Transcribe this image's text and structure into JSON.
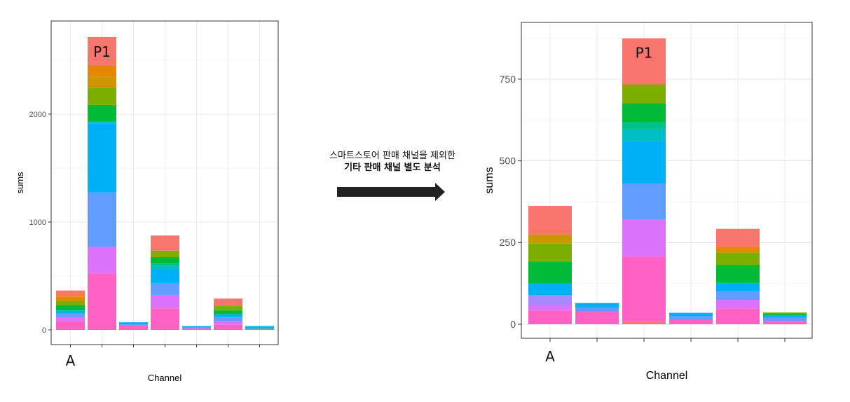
{
  "annotation": {
    "line1": "스마트스토어 판매 채널을 제외한",
    "line2": "기타 판매 채널 별도 분석"
  },
  "colors": {
    "arrow": "#222222",
    "palette": [
      "#F8766D",
      "#E58700",
      "#C99800",
      "#A3A500",
      "#6BB100",
      "#00BA38",
      "#00BF7D",
      "#00C0AF",
      "#00BCD8",
      "#00B0F6",
      "#619CFF",
      "#B983FF",
      "#E76BF3",
      "#FD61D1",
      "#FF67A4"
    ]
  },
  "chart_data": [
    {
      "type": "bar",
      "stacked": true,
      "xlabel": "Channel",
      "ylabel": "sums",
      "ylim": [
        0,
        2850
      ],
      "yticks": [
        0,
        1000,
        2000
      ],
      "grid": true,
      "bar_labels": [
        {
          "bar": 0,
          "text": "A"
        },
        {
          "bar": 1,
          "text": "P1"
        }
      ],
      "bars": [
        {
          "segments": [
            {
              "value": 80,
              "color": "#FF61C3"
            },
            {
              "value": 40,
              "color": "#DB72FB"
            },
            {
              "value": 30,
              "color": "#619CFF"
            },
            {
              "value": 30,
              "color": "#00B9E3"
            },
            {
              "value": 50,
              "color": "#00BA38"
            },
            {
              "value": 40,
              "color": "#7CAE00"
            },
            {
              "value": 40,
              "color": "#E58700"
            },
            {
              "value": 55,
              "color": "#F8766D"
            }
          ]
        },
        {
          "segments": [
            {
              "value": 525,
              "color": "#FF61C3"
            },
            {
              "value": 245,
              "color": "#DB72FB"
            },
            {
              "value": 505,
              "color": "#619CFF"
            },
            {
              "value": 635,
              "color": "#00B0F6"
            },
            {
              "value": 20,
              "color": "#00BFC4"
            },
            {
              "value": 155,
              "color": "#00BA38"
            },
            {
              "value": 160,
              "color": "#7CAE00"
            },
            {
              "value": 100,
              "color": "#C99800"
            },
            {
              "value": 110,
              "color": "#E58700"
            },
            {
              "value": 260,
              "color": "#F8766D"
            }
          ]
        },
        {
          "segments": [
            {
              "value": 40,
              "color": "#FF61C3"
            },
            {
              "value": 10,
              "color": "#619CFF"
            },
            {
              "value": 20,
              "color": "#00B0F6"
            }
          ]
        },
        {
          "segments": [
            {
              "value": 200,
              "color": "#FF61C3"
            },
            {
              "value": 125,
              "color": "#DB72FB"
            },
            {
              "value": 110,
              "color": "#619CFF"
            },
            {
              "value": 130,
              "color": "#00B0F6"
            },
            {
              "value": 30,
              "color": "#00BFC4"
            },
            {
              "value": 20,
              "color": "#00C08B"
            },
            {
              "value": 60,
              "color": "#00BA38"
            },
            {
              "value": 60,
              "color": "#7CAE00"
            },
            {
              "value": 140,
              "color": "#F8766D"
            }
          ]
        },
        {
          "segments": [
            {
              "value": 15,
              "color": "#FF61C3"
            },
            {
              "value": 8,
              "color": "#619CFF"
            },
            {
              "value": 12,
              "color": "#00B0F6"
            }
          ]
        },
        {
          "segments": [
            {
              "value": 50,
              "color": "#FF61C3"
            },
            {
              "value": 30,
              "color": "#DB72FB"
            },
            {
              "value": 35,
              "color": "#619CFF"
            },
            {
              "value": 30,
              "color": "#00B0F6"
            },
            {
              "value": 35,
              "color": "#00BA38"
            },
            {
              "value": 45,
              "color": "#7CAE00"
            },
            {
              "value": 65,
              "color": "#F8766D"
            }
          ]
        },
        {
          "segments": [
            {
              "value": 10,
              "color": "#FF61C3"
            },
            {
              "value": 10,
              "color": "#00BFC4"
            },
            {
              "value": 15,
              "color": "#00B0F6"
            }
          ]
        }
      ]
    },
    {
      "type": "bar",
      "stacked": true,
      "xlabel": "Channel",
      "ylabel": "sums",
      "ylim": [
        -43,
        905
      ],
      "yticks": [
        0,
        250,
        500,
        750
      ],
      "grid": true,
      "bar_labels": [
        {
          "bar": 0,
          "text": "A"
        },
        {
          "bar": 2,
          "text": "P1"
        }
      ],
      "bars": [
        {
          "segments": [
            {
              "value": 42,
              "color": "#FF61C3"
            },
            {
              "value": 18,
              "color": "#DB72FB"
            },
            {
              "value": 30,
              "color": "#A58AFF"
            },
            {
              "value": 35,
              "color": "#00B0F6"
            },
            {
              "value": 67,
              "color": "#00BA38"
            },
            {
              "value": 55,
              "color": "#7CAE00"
            },
            {
              "value": 28,
              "color": "#C99800"
            },
            {
              "value": 87,
              "color": "#F8766D"
            }
          ]
        },
        {
          "segments": [
            {
              "value": 38,
              "color": "#FF61C3"
            },
            {
              "value": 12,
              "color": "#619CFF"
            },
            {
              "value": 15,
              "color": "#00B0F6"
            }
          ]
        },
        {
          "segments": [
            {
              "value": 10,
              "color": "#F8766D"
            },
            {
              "value": 197,
              "color": "#FF61C3"
            },
            {
              "value": 113,
              "color": "#DB72FB"
            },
            {
              "value": 110,
              "color": "#619CFF"
            },
            {
              "value": 130,
              "color": "#00B0F6"
            },
            {
              "value": 38,
              "color": "#00BFC4"
            },
            {
              "value": 20,
              "color": "#00C08B"
            },
            {
              "value": 58,
              "color": "#00BA38"
            },
            {
              "value": 58,
              "color": "#7CAE00"
            },
            {
              "value": 141,
              "color": "#F8766D"
            }
          ]
        },
        {
          "segments": [
            {
              "value": 15,
              "color": "#FF61C3"
            },
            {
              "value": 10,
              "color": "#619CFF"
            },
            {
              "value": 10,
              "color": "#00B0F6"
            }
          ]
        },
        {
          "segments": [
            {
              "value": 48,
              "color": "#FF61C3"
            },
            {
              "value": 27,
              "color": "#DB72FB"
            },
            {
              "value": 25,
              "color": "#619CFF"
            },
            {
              "value": 27,
              "color": "#00B0F6"
            },
            {
              "value": 8,
              "color": "#00BA38"
            },
            {
              "value": 47,
              "color": "#00BA38"
            },
            {
              "value": 38,
              "color": "#7CAE00"
            },
            {
              "value": 17,
              "color": "#E58700"
            },
            {
              "value": 55,
              "color": "#F8766D"
            }
          ]
        },
        {
          "segments": [
            {
              "value": 10,
              "color": "#FF61C3"
            },
            {
              "value": 10,
              "color": "#619CFF"
            },
            {
              "value": 8,
              "color": "#00B0F6"
            },
            {
              "value": 5,
              "color": "#00BA38"
            },
            {
              "value": 3,
              "color": "#7CAE00"
            }
          ]
        }
      ]
    }
  ]
}
